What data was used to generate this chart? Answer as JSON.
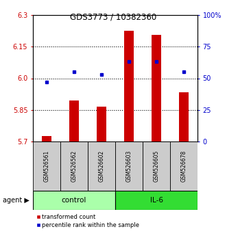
{
  "title": "GDS3773 / 10382360",
  "samples": [
    "GSM526561",
    "GSM526562",
    "GSM526602",
    "GSM526603",
    "GSM526605",
    "GSM526678"
  ],
  "red_values": [
    5.725,
    5.895,
    5.865,
    6.225,
    6.205,
    5.935
  ],
  "blue_percentiles": [
    47,
    55,
    53,
    63,
    63,
    55
  ],
  "y_min": 5.7,
  "y_max": 6.3,
  "y_ticks_left": [
    5.7,
    5.85,
    6.0,
    6.15,
    6.3
  ],
  "y_ticks_right": [
    0,
    25,
    50,
    75,
    100
  ],
  "y_ticks_right_labels": [
    "0",
    "25",
    "50",
    "75",
    "100%"
  ],
  "grid_lines": [
    5.85,
    6.0,
    6.15
  ],
  "groups": [
    {
      "label": "control",
      "indices": [
        0,
        1,
        2
      ],
      "color": "#AAFFAA"
    },
    {
      "label": "IL-6",
      "indices": [
        3,
        4,
        5
      ],
      "color": "#33DD33"
    }
  ],
  "bar_color": "#CC0000",
  "dot_color": "#0000CC",
  "bar_bottom": 5.7,
  "agent_label": "agent",
  "legend_red": "transformed count",
  "legend_blue": "percentile rank within the sample",
  "title_color": "#000000",
  "left_axis_color": "#CC0000",
  "right_axis_color": "#0000CC",
  "sample_box_color": "#CCCCCC"
}
